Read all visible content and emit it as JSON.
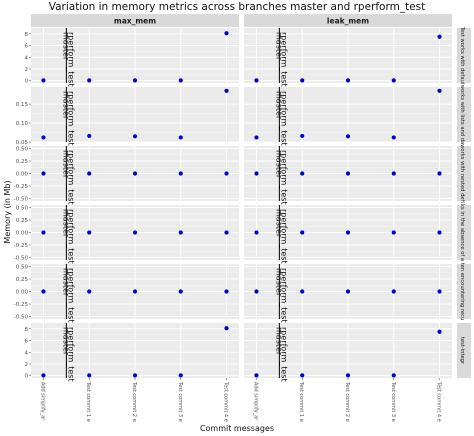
{
  "chart_data": {
    "type": "scatter",
    "title": "Variation in memory metrics across branches master and rperform_test",
    "xlabel": "Commit messages",
    "ylabel": "Memory (in Mb)",
    "x_categories": [
      "Add simplify_ar",
      "Test commit 1 e",
      "Test commit 2 e",
      "Test commit 3 e",
      "Test commit 4 e"
    ],
    "column_facets": [
      "max_mem",
      "leak_mem"
    ],
    "branches": [
      "master",
      "rperform_test"
    ],
    "branch_boundary_after_index": 0,
    "point_color": "#0000cc",
    "rows": [
      {
        "label": "Test works with defaul",
        "y_ticks": [
          0,
          2,
          4,
          6,
          8
        ],
        "ylim": [
          -0.4,
          9
        ],
        "panels": {
          "max_mem": [
            0.05,
            0.05,
            0.05,
            0.05,
            8.1
          ],
          "leak_mem": [
            0.05,
            0.05,
            0.05,
            0.05,
            7.5
          ]
        }
      },
      {
        "label": "works with lists and da",
        "y_ticks": [
          0.05,
          0.1,
          0.15
        ],
        "ylim": [
          0.05,
          0.195
        ],
        "panels": {
          "max_mem": [
            0.062,
            0.066,
            0.065,
            0.062,
            0.185
          ],
          "leak_mem": [
            0.062,
            0.066,
            0.065,
            0.062,
            0.185
          ]
        }
      },
      {
        "label": "works with nested defi",
        "y_ticks": [
          -0.5,
          -0.25,
          0.0,
          0.25,
          0.5
        ],
        "ylim": [
          -0.55,
          0.55
        ],
        "panels": {
          "max_mem": [
            0,
            0,
            0,
            0,
            0
          ],
          "leak_mem": [
            0,
            0,
            0,
            0,
            0
          ]
        }
      },
      {
        "label": "ks in the absence of a",
        "y_ticks": [
          -0.5,
          -0.25,
          0.0,
          0.25,
          0.5
        ],
        "ylim": [
          -0.55,
          0.55
        ],
        "panels": {
          "max_mem": [
            0,
            0,
            0,
            0,
            0
          ],
          "leak_mem": [
            0,
            0,
            0,
            0,
            0
          ]
        }
      },
      {
        "label": "ten encountering recu",
        "y_ticks": [
          -0.5,
          -0.25,
          0.0,
          0.25,
          0.5
        ],
        "ylim": [
          -0.55,
          0.55
        ],
        "panels": {
          "max_mem": [
            0,
            0,
            0,
            0,
            0
          ],
          "leak_mem": [
            0,
            0,
            0,
            0,
            0
          ]
        }
      },
      {
        "label": "test-integr",
        "y_ticks": [
          0,
          2,
          4,
          6,
          8
        ],
        "ylim": [
          -0.4,
          9
        ],
        "panels": {
          "max_mem": [
            0.05,
            0.05,
            0.05,
            0.05,
            8.1
          ],
          "leak_mem": [
            0.05,
            0.05,
            0.05,
            0.05,
            7.5
          ]
        }
      }
    ],
    "grid": true,
    "legend": "none"
  }
}
